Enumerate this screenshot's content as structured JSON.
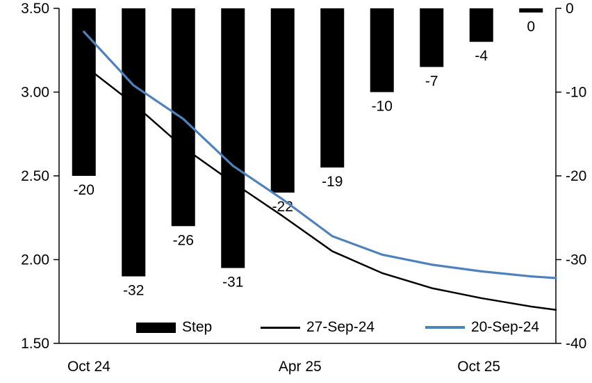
{
  "chart_data": {
    "type": "bar",
    "subtype": "combo-bar-and-line",
    "title": "",
    "bar_series": {
      "name": "Step",
      "color": "#000000",
      "axis": "right",
      "values": [
        -20,
        -32,
        -26,
        -31,
        -22,
        -19,
        -10,
        -7,
        -4,
        0
      ],
      "labels": [
        "-20",
        "-32",
        "-26",
        "-31",
        "-22",
        "-19",
        "-10",
        "-7",
        "-4",
        "0"
      ]
    },
    "line_series": [
      {
        "name": "27-Sep-24",
        "color": "#000000",
        "width": 2.5,
        "axis": "left",
        "x": [
          0.5,
          1.5,
          2.5,
          3.5,
          4.5,
          5.5,
          6.5,
          7.5,
          8.5,
          9.5,
          10
        ],
        "values": [
          3.16,
          2.93,
          2.67,
          2.46,
          2.26,
          2.05,
          1.92,
          1.83,
          1.77,
          1.72,
          1.7
        ]
      },
      {
        "name": "20-Sep-24",
        "color": "#4f81bd",
        "width": 3.2,
        "axis": "left",
        "x": [
          0.5,
          1.5,
          2.5,
          3.5,
          4.5,
          5.5,
          6.5,
          7.5,
          8.5,
          9.5,
          10
        ],
        "values": [
          3.36,
          3.04,
          2.84,
          2.56,
          2.36,
          2.14,
          2.03,
          1.97,
          1.93,
          1.9,
          1.89
        ]
      }
    ],
    "left_axis": {
      "min": 1.5,
      "max": 3.5,
      "ticks": [
        "3.50",
        "3.00",
        "2.50",
        "2.00",
        "1.50"
      ]
    },
    "right_axis": {
      "min": -40,
      "max": 0,
      "ticks": [
        "0",
        "-10",
        "-20",
        "-30",
        "-40"
      ]
    },
    "x_axis": {
      "slots": 10,
      "labels": [
        {
          "text": "Oct 24",
          "pos": 0.6
        },
        {
          "text": "Apr 25",
          "pos": 4.85
        },
        {
          "text": "Oct 25",
          "pos": 8.45
        }
      ]
    },
    "legend_position": "bottom-inside",
    "grid": false
  },
  "legend": {
    "items": [
      "Step",
      "27-Sep-24",
      "20-Sep-24"
    ]
  }
}
